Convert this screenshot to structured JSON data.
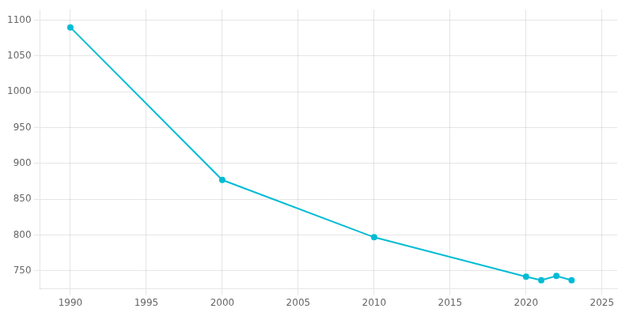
{
  "chart_data": {
    "type": "line",
    "x": [
      1990,
      2000,
      2010,
      2020,
      2021,
      2022,
      2023
    ],
    "values": [
      1090,
      877,
      797,
      742,
      737,
      743,
      737
    ],
    "color": "#00BCD4",
    "marker": "circle",
    "xlim": [
      1988,
      2026
    ],
    "ylim": [
      725,
      1115
    ],
    "xticks": [
      1990,
      1995,
      2000,
      2005,
      2010,
      2015,
      2020,
      2025
    ],
    "yticks": [
      750,
      800,
      850,
      900,
      950,
      1000,
      1050,
      1100
    ],
    "grid": true
  }
}
